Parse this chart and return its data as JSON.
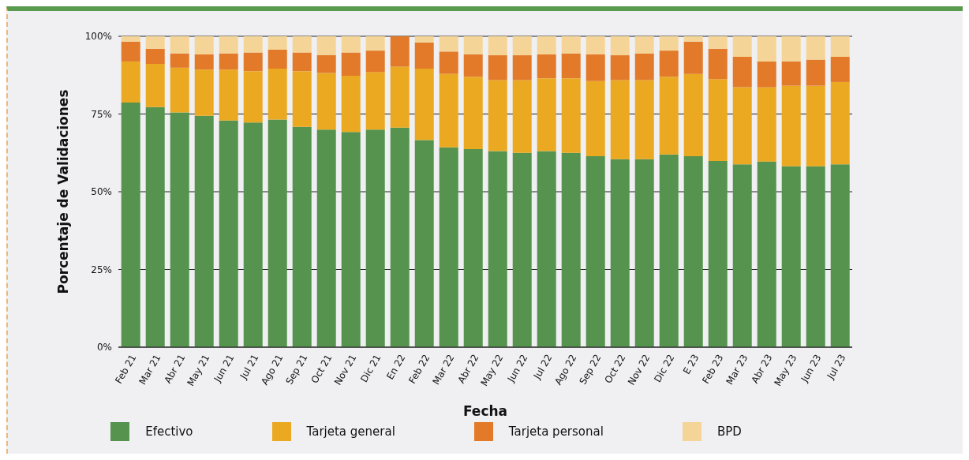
{
  "chart_data": {
    "type": "bar",
    "stacked": true,
    "xlabel": "Fecha",
    "ylabel": "Porcentaje de Validaciones",
    "categories": [
      "Feb 21",
      "Mar 21",
      "Abr 21",
      "May 21",
      "Jun 21",
      "Jul 21",
      "Ago 21",
      "Sep 21",
      "Oct 21",
      "Nov 21",
      "Dic 21",
      "En 22",
      "Feb 22",
      "Mar 22",
      "Abr 22",
      "May 22",
      "Jun 22",
      "Jul 22",
      "Ago 22",
      "Sep 22",
      "Oct 22",
      "Nov 22",
      "Dic 22",
      "E 23",
      "Feb 23",
      "Mar 23",
      "Abr 23",
      "May 23",
      "Jun 23",
      "Jul 23"
    ],
    "series": [
      {
        "name": "Efectivo",
        "color": "#55934e",
        "values": [
          78.7,
          77.2,
          75.5,
          74.4,
          72.9,
          72.3,
          73.2,
          70.9,
          70.0,
          69.2,
          70.0,
          70.6,
          66.6,
          64.3,
          63.7,
          63.1,
          62.5,
          63.1,
          62.5,
          61.4,
          60.5,
          60.5,
          62.0,
          61.4,
          59.9,
          58.8,
          59.7,
          58.2,
          58.2,
          58.8
        ]
      },
      {
        "name": "Tarjeta general",
        "color": "#eaa921",
        "values": [
          13.2,
          13.9,
          14.4,
          14.9,
          16.4,
          16.5,
          16.4,
          17.9,
          18.2,
          18.1,
          18.5,
          19.6,
          23.0,
          23.6,
          23.3,
          22.8,
          23.4,
          23.4,
          24.0,
          24.2,
          25.4,
          25.4,
          25.0,
          26.5,
          26.3,
          24.8,
          23.9,
          25.9,
          25.9,
          26.5
        ]
      },
      {
        "name": "Tarjeta personal",
        "color": "#e27a2a",
        "values": [
          6.4,
          4.9,
          4.6,
          4.9,
          5.2,
          6.0,
          6.1,
          6.0,
          5.8,
          7.5,
          6.9,
          9.8,
          8.4,
          7.2,
          7.2,
          8.0,
          8.0,
          7.7,
          8.0,
          8.6,
          8.0,
          8.6,
          8.4,
          10.4,
          9.8,
          9.8,
          8.3,
          7.8,
          8.4,
          8.1
        ]
      },
      {
        "name": "BPD",
        "color": "#f5d597",
        "values": [
          1.7,
          4.0,
          5.5,
          5.8,
          5.5,
          5.2,
          4.3,
          5.2,
          6.0,
          5.2,
          4.6,
          0,
          2.0,
          4.9,
          5.8,
          6.1,
          6.1,
          5.8,
          5.5,
          5.8,
          6.1,
          5.5,
          4.6,
          1.7,
          4.0,
          6.6,
          8.1,
          8.1,
          7.5,
          6.6
        ]
      }
    ],
    "ylim": [
      0,
      100
    ],
    "yticks": [
      {
        "value": 0,
        "label": "0%"
      },
      {
        "value": 25,
        "label": "25%"
      },
      {
        "value": 50,
        "label": "50%"
      },
      {
        "value": 75,
        "label": "75%"
      },
      {
        "value": 100,
        "label": "100%"
      }
    ],
    "grid": "y",
    "legend": "bottom"
  }
}
